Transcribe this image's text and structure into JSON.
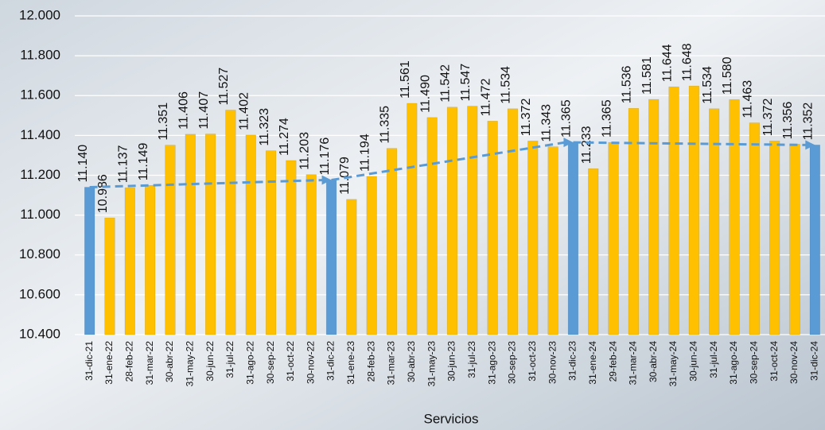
{
  "chart_data": {
    "type": "bar",
    "x_label": "Servicios",
    "categories": [
      "31-dic-21",
      "31-ene-22",
      "28-feb-22",
      "31-mar-22",
      "30-abr-22",
      "31-may-22",
      "30-jun-22",
      "31-jul-22",
      "31-ago-22",
      "30-sep-22",
      "31-oct-22",
      "30-nov-22",
      "31-dic-22",
      "31-ene-23",
      "28-feb-23",
      "31-mar-23",
      "30-abr-23",
      "31-may-23",
      "30-jun-23",
      "31-jul-23",
      "31-ago-23",
      "30-sep-23",
      "31-oct-23",
      "30-nov-23",
      "31-dic-23",
      "31-ene-24",
      "29-feb-24",
      "31-mar-24",
      "30-abr-24",
      "31-may-24",
      "30-jun-24",
      "31-jul-24",
      "31-ago-24",
      "30-sep-24",
      "31-oct-24",
      "30-nov-24",
      "31-dic-24"
    ],
    "values": [
      11140,
      10986,
      11137,
      11149,
      11351,
      11406,
      11407,
      11527,
      11402,
      11323,
      11274,
      11203,
      11176,
      11079,
      11194,
      11335,
      11561,
      11490,
      11542,
      11547,
      11472,
      11534,
      11372,
      11343,
      11365,
      11233,
      11365,
      11536,
      11581,
      11644,
      11648,
      11534,
      11580,
      11463,
      11372,
      11356,
      11352
    ],
    "value_labels": [
      "11.140",
      "10.986",
      "11.137",
      "11.149",
      "11.351",
      "11.406",
      "11.407",
      "11.527",
      "11.402",
      "11.323",
      "11.274",
      "11.203",
      "11.176",
      "11.079",
      "11.194",
      "11.335",
      "11.561",
      "11.490",
      "11.542",
      "11.547",
      "11.472",
      "11.534",
      "11.372",
      "11.343",
      "11.365",
      "11.233",
      "11.365",
      "11.536",
      "11.581",
      "11.644",
      "11.648",
      "11.534",
      "11.580",
      "11.463",
      "11.372",
      "11.356",
      "11.352"
    ],
    "colors": [
      "#5b9bd5",
      "#ffc000",
      "#ffc000",
      "#ffc000",
      "#ffc000",
      "#ffc000",
      "#ffc000",
      "#ffc000",
      "#ffc000",
      "#ffc000",
      "#ffc000",
      "#ffc000",
      "#5b9bd5",
      "#ffc000",
      "#ffc000",
      "#ffc000",
      "#ffc000",
      "#ffc000",
      "#ffc000",
      "#ffc000",
      "#ffc000",
      "#ffc000",
      "#ffc000",
      "#ffc000",
      "#5b9bd5",
      "#ffc000",
      "#ffc000",
      "#ffc000",
      "#ffc000",
      "#ffc000",
      "#ffc000",
      "#ffc000",
      "#ffc000",
      "#ffc000",
      "#ffc000",
      "#ffc000",
      "#5b9bd5"
    ],
    "trend_color": "#5b9bd5",
    "ylim": [
      10400,
      12000
    ],
    "yticks": [
      {
        "value": 10400,
        "label": "10.400"
      },
      {
        "value": 10600,
        "label": "10.600"
      },
      {
        "value": 10800,
        "label": "10.800"
      },
      {
        "value": 11000,
        "label": "11.000"
      },
      {
        "value": 11200,
        "label": "11.200"
      },
      {
        "value": 11400,
        "label": "11.400"
      },
      {
        "value": 11600,
        "label": "11.600"
      },
      {
        "value": 11800,
        "label": "11.800"
      },
      {
        "value": 12000,
        "label": "12.000"
      }
    ],
    "grid": true
  }
}
